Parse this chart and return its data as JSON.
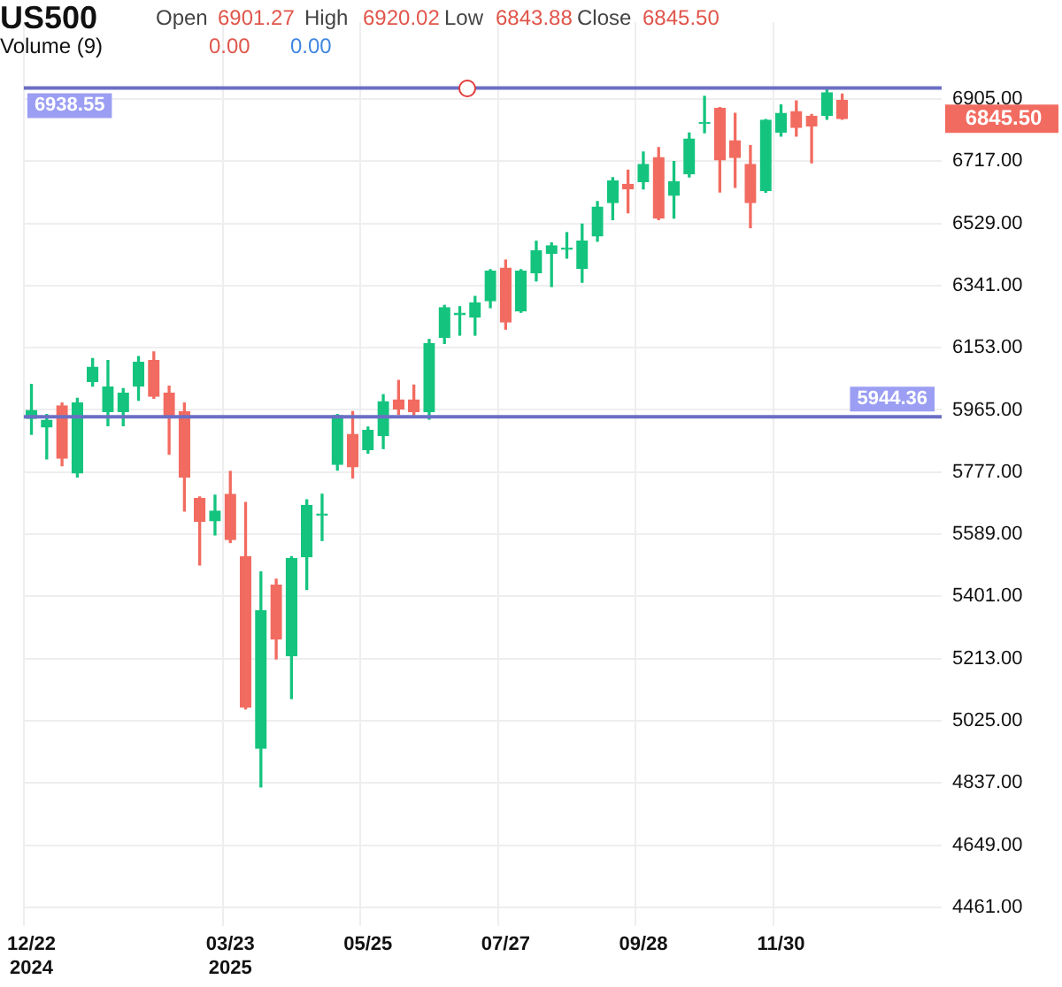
{
  "chart_data": {
    "type": "candlestick",
    "title": "US500",
    "categories": [
      "12/22\n2024",
      null,
      null,
      null,
      null,
      null,
      null,
      null,
      null,
      null,
      null,
      null,
      null,
      "03/23\n2025",
      null,
      null,
      null,
      null,
      null,
      null,
      null,
      null,
      "05/25",
      null,
      null,
      null,
      null,
      null,
      null,
      null,
      null,
      "07/27",
      null,
      null,
      null,
      null,
      null,
      null,
      null,
      null,
      "09/28",
      null,
      null,
      null,
      null,
      null,
      null,
      null,
      null,
      "11/30",
      null,
      null,
      null,
      null,
      null,
      null,
      null,
      null,
      null,
      null
    ],
    "ohlc": [
      [
        5939,
        6042,
        5891,
        5963
      ],
      [
        5913,
        5951,
        5817,
        5934
      ],
      [
        5977,
        5986,
        5796,
        5819
      ],
      [
        5774,
        6000,
        5762,
        5986
      ],
      [
        6051,
        6120,
        6037,
        6094
      ],
      [
        5960,
        6114,
        5917,
        6034
      ],
      [
        5960,
        6029,
        5917,
        6016
      ],
      [
        6037,
        6126,
        5994,
        6109
      ],
      [
        6114,
        6140,
        6000,
        6006
      ],
      [
        6016,
        6037,
        5831,
        5943
      ],
      [
        5960,
        5986,
        5659,
        5762
      ],
      [
        5697,
        5702,
        5496,
        5628
      ],
      [
        5630,
        5707,
        5587,
        5659
      ],
      [
        5710,
        5779,
        5564,
        5573
      ],
      [
        5521,
        5685,
        5061,
        5066
      ],
      [
        4942,
        5475,
        4825,
        5358
      ],
      [
        5435,
        5453,
        5212,
        5272
      ],
      [
        5221,
        5521,
        5092,
        5516
      ],
      [
        5521,
        5693,
        5422,
        5676
      ],
      [
        5647,
        5710,
        5570,
        5650
      ],
      [
        5800,
        5951,
        5783,
        5948
      ],
      [
        5891,
        5960,
        5759,
        5793
      ],
      [
        5845,
        5913,
        5834,
        5903
      ],
      [
        5887,
        6011,
        5848,
        5990
      ],
      [
        5995,
        6054,
        5951,
        5968
      ],
      [
        5995,
        6040,
        5942,
        5959
      ],
      [
        5959,
        6178,
        5937,
        6166
      ],
      [
        6184,
        6281,
        6166,
        6274
      ],
      [
        6253,
        6277,
        6191,
        6257
      ],
      [
        6246,
        6308,
        6191,
        6289
      ],
      [
        6295,
        6389,
        6274,
        6384
      ],
      [
        6394,
        6418,
        6209,
        6231
      ],
      [
        6264,
        6389,
        6260,
        6384
      ],
      [
        6380,
        6475,
        6355,
        6446
      ],
      [
        6439,
        6470,
        6338,
        6461
      ],
      [
        6451,
        6501,
        6424,
        6454
      ],
      [
        6393,
        6527,
        6351,
        6475
      ],
      [
        6491,
        6595,
        6475,
        6578
      ],
      [
        6592,
        6667,
        6540,
        6657
      ],
      [
        6647,
        6690,
        6561,
        6633
      ],
      [
        6655,
        6745,
        6633,
        6707
      ],
      [
        6728,
        6758,
        6540,
        6545
      ],
      [
        6614,
        6716,
        6545,
        6655
      ],
      [
        6679,
        6802,
        6669,
        6784
      ],
      [
        6831,
        6913,
        6803,
        6834
      ],
      [
        6877,
        6879,
        6624,
        6721
      ],
      [
        6779,
        6862,
        6638,
        6728
      ],
      [
        6707,
        6764,
        6516,
        6592
      ],
      [
        6628,
        6843,
        6623,
        6841
      ],
      [
        6805,
        6887,
        6793,
        6862
      ],
      [
        6867,
        6899,
        6793,
        6819
      ],
      [
        6853,
        6858,
        6712,
        6824
      ],
      [
        6855,
        6938,
        6844,
        6924
      ],
      [
        6901.27,
        6920.02,
        6843.88,
        6845.5
      ],
      null,
      null,
      null,
      null,
      null,
      null
    ],
    "colors": [
      "#14c47e",
      "#14c47e",
      "#f26b60",
      "#14c47e",
      "#14c47e",
      "#14c47e",
      "#14c47e",
      "#14c47e",
      "#f26b60",
      "#f26b60",
      "#f26b60",
      "#f26b60",
      "#14c47e",
      "#f26b60",
      "#f26b60",
      "#14c47e",
      "#f26b60",
      "#14c47e",
      "#14c47e",
      "#14c47e",
      "#14c47e",
      "#f26b60",
      "#14c47e",
      "#14c47e",
      "#f26b60",
      "#f26b60",
      "#14c47e",
      "#14c47e",
      "#14c47e",
      "#14c47e",
      "#14c47e",
      "#f26b60",
      "#14c47e",
      "#14c47e",
      "#14c47e",
      "#14c47e",
      "#14c47e",
      "#14c47e",
      "#14c47e",
      "#f26b60",
      "#14c47e",
      "#f26b60",
      "#14c47e",
      "#14c47e",
      "#14c47e",
      "#f26b60",
      "#f26b60",
      "#f26b60",
      "#14c47e",
      "#14c47e",
      "#f26b60",
      "#f26b60",
      "#14c47e",
      "#f26b60",
      null,
      null,
      null,
      null,
      null,
      null
    ],
    "ylim": [
      4404,
      7137
    ],
    "yticks": [
      {
        "value": 4461,
        "label": "4461.00"
      },
      {
        "value": 4649,
        "label": "4649.00"
      },
      {
        "value": 4837,
        "label": "4837.00"
      },
      {
        "value": 5025,
        "label": "5025.00"
      },
      {
        "value": 5213,
        "label": "5213.00"
      },
      {
        "value": 5401,
        "label": "5401.00"
      },
      {
        "value": 5589,
        "label": "5589.00"
      },
      {
        "value": 5777,
        "label": "5777.00"
      },
      {
        "value": 5965,
        "label": "5965.00"
      },
      {
        "value": 6153,
        "label": "6153.00"
      },
      {
        "value": 6341,
        "label": "6341.00"
      },
      {
        "value": 6529,
        "label": "6529.00"
      },
      {
        "value": 6717,
        "label": "6717.00"
      },
      {
        "value": 6905,
        "label": "6905.00"
      }
    ],
    "grid": true,
    "legend": false,
    "ref_lines": [
      {
        "axis": "y",
        "value": 6938.55,
        "label": "6938.55",
        "color": "#6b6fc4"
      },
      {
        "axis": "y",
        "value": 5944.36,
        "label": "5944.36",
        "color": "#6b6fc4"
      }
    ],
    "annotations": [
      "Open",
      "6901.27",
      "High",
      "6920.02",
      "Low",
      "6843.88",
      "Close",
      "6845.50",
      "Volume (9)",
      "0.00",
      "0.00",
      "6845.50"
    ]
  }
}
